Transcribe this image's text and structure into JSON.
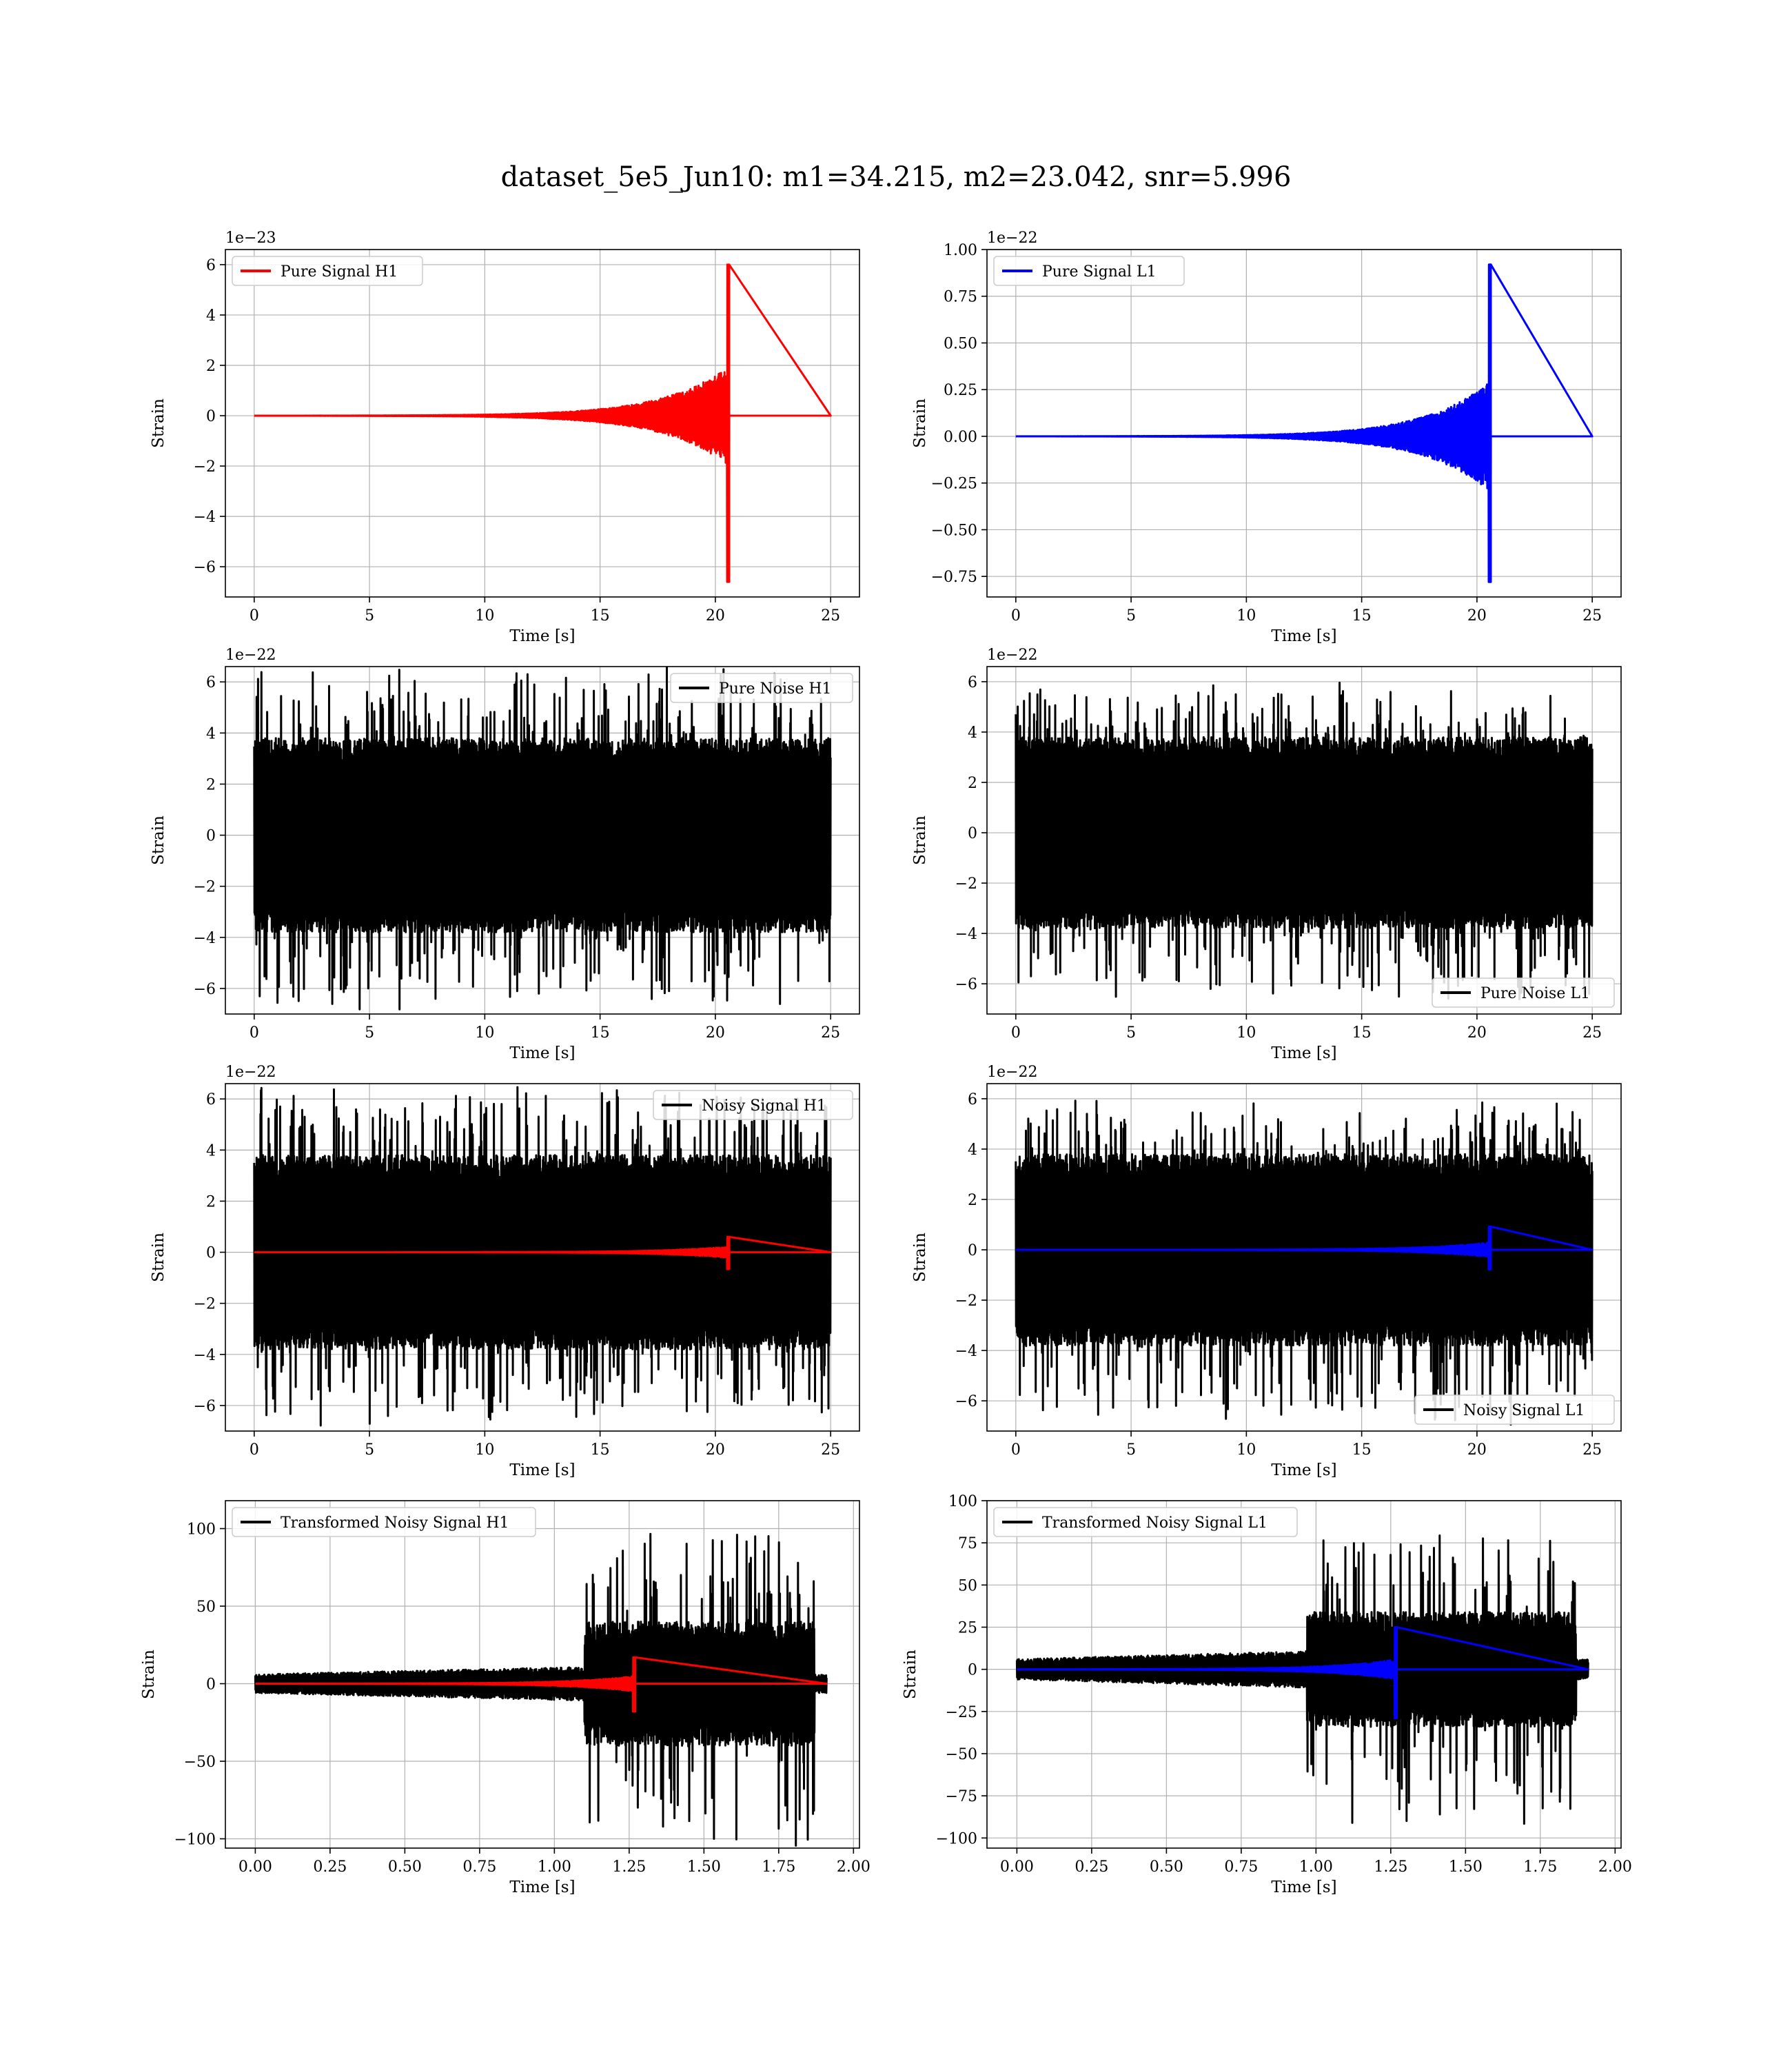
{
  "figure_title": "dataset_5e5_Jun10: m1=34.215, m2=23.042, snr=5.996",
  "colors": {
    "signal_H1": "#ff0000",
    "signal_L1": "#0000ff",
    "noise": "#000000",
    "grid": "#b0b0b0"
  },
  "chart_data": [
    {
      "type": "line",
      "xlabel": "Time [s]",
      "ylabel": "Strain",
      "offset_text": "1e−23",
      "xlim": [
        -1.25,
        26.25
      ],
      "ylim": [
        -7.2,
        6.6
      ],
      "xticks": [
        0,
        5,
        10,
        15,
        20,
        25
      ],
      "xtick_labels": [
        "0",
        "5",
        "10",
        "15",
        "20",
        "25"
      ],
      "yticks": [
        -6,
        -4,
        -2,
        0,
        2,
        4,
        6
      ],
      "ytick_labels": [
        "−6",
        "−4",
        "−2",
        "0",
        "2",
        "4",
        "6"
      ],
      "grid": true,
      "legend_loc": "upper-left",
      "series": [
        {
          "name": "Pure Signal H1",
          "color": "#ff0000",
          "kind": "chirp",
          "t_start": 0,
          "t_end": 25,
          "t_merger": 20.6,
          "amp_plus": 6.0,
          "amp_minus": -6.6,
          "inspiral_amp": 2.0
        }
      ]
    },
    {
      "type": "line",
      "xlabel": "Time [s]",
      "ylabel": "Strain",
      "offset_text": "1e−22",
      "xlim": [
        -1.25,
        26.25
      ],
      "ylim": [
        -0.86,
        1.0
      ],
      "xticks": [
        0,
        5,
        10,
        15,
        20,
        25
      ],
      "xtick_labels": [
        "0",
        "5",
        "10",
        "15",
        "20",
        "25"
      ],
      "yticks": [
        -0.75,
        -0.5,
        -0.25,
        0,
        0.25,
        0.5,
        0.75,
        1.0
      ],
      "ytick_labels": [
        "−0.75",
        "−0.50",
        "−0.25",
        "0.00",
        "0.25",
        "0.50",
        "0.75",
        "1.00"
      ],
      "grid": true,
      "legend_loc": "upper-left",
      "series": [
        {
          "name": "Pure Signal L1",
          "color": "#0000ff",
          "kind": "chirp",
          "t_start": 0,
          "t_end": 25,
          "t_merger": 20.6,
          "amp_plus": 0.92,
          "amp_minus": -0.78,
          "inspiral_amp": 0.3
        }
      ]
    },
    {
      "type": "line",
      "xlabel": "Time [s]",
      "ylabel": "Strain",
      "offset_text": "1e−22",
      "xlim": [
        -1.25,
        26.25
      ],
      "ylim": [
        -7.0,
        6.6
      ],
      "xticks": [
        0,
        5,
        10,
        15,
        20,
        25
      ],
      "xtick_labels": [
        "0",
        "5",
        "10",
        "15",
        "20",
        "25"
      ],
      "yticks": [
        -6,
        -4,
        -2,
        0,
        2,
        4,
        6
      ],
      "ytick_labels": [
        "−6",
        "−4",
        "−2",
        "0",
        "2",
        "4",
        "6"
      ],
      "grid": true,
      "legend_loc": "upper-right",
      "series": [
        {
          "name": "Pure Noise H1",
          "color": "#000000",
          "kind": "noise",
          "t_start": 0,
          "t_end": 25,
          "band": 3.8,
          "peak_max": 6.8,
          "peak_min": -6.9
        }
      ]
    },
    {
      "type": "line",
      "xlabel": "Time [s]",
      "ylabel": "Strain",
      "offset_text": "1e−22",
      "xlim": [
        -1.25,
        26.25
      ],
      "ylim": [
        -7.2,
        6.6
      ],
      "xticks": [
        0,
        5,
        10,
        15,
        20,
        25
      ],
      "xtick_labels": [
        "0",
        "5",
        "10",
        "15",
        "20",
        "25"
      ],
      "yticks": [
        -6,
        -4,
        -2,
        0,
        2,
        4,
        6
      ],
      "ytick_labels": [
        "−6",
        "−4",
        "−2",
        "0",
        "2",
        "4",
        "6"
      ],
      "grid": true,
      "legend_loc": "lower-right",
      "series": [
        {
          "name": "Pure Noise L1",
          "color": "#000000",
          "kind": "noise",
          "t_start": 0,
          "t_end": 25,
          "band": 3.8,
          "peak_max": 6.1,
          "peak_min": -7.0
        }
      ]
    },
    {
      "type": "line",
      "xlabel": "Time [s]",
      "ylabel": "Strain",
      "offset_text": "1e−22",
      "xlim": [
        -1.25,
        26.25
      ],
      "ylim": [
        -7.0,
        6.6
      ],
      "xticks": [
        0,
        5,
        10,
        15,
        20,
        25
      ],
      "xtick_labels": [
        "0",
        "5",
        "10",
        "15",
        "20",
        "25"
      ],
      "yticks": [
        -6,
        -4,
        -2,
        0,
        2,
        4,
        6
      ],
      "ytick_labels": [
        "−6",
        "−4",
        "−2",
        "0",
        "2",
        "4",
        "6"
      ],
      "grid": true,
      "legend_loc": "upper-right",
      "series": [
        {
          "name": "Noisy Signal H1",
          "color": "#000000",
          "kind": "noise",
          "t_start": 0,
          "t_end": 25,
          "band": 3.8,
          "peak_max": 6.8,
          "peak_min": -6.9
        },
        {
          "color": "#ff0000",
          "kind": "chirp",
          "t_start": 0,
          "t_end": 25,
          "t_merger": 20.6,
          "amp_plus": 0.6,
          "amp_minus": -0.66,
          "inspiral_amp": 0.22
        }
      ]
    },
    {
      "type": "line",
      "xlabel": "Time [s]",
      "ylabel": "Strain",
      "offset_text": "1e−22",
      "xlim": [
        -1.25,
        26.25
      ],
      "ylim": [
        -7.2,
        6.6
      ],
      "xticks": [
        0,
        5,
        10,
        15,
        20,
        25
      ],
      "xtick_labels": [
        "0",
        "5",
        "10",
        "15",
        "20",
        "25"
      ],
      "yticks": [
        -6,
        -4,
        -2,
        0,
        2,
        4,
        6
      ],
      "ytick_labels": [
        "−6",
        "−4",
        "−2",
        "0",
        "2",
        "4",
        "6"
      ],
      "grid": true,
      "legend_loc": "lower-right",
      "series": [
        {
          "name": "Noisy Signal L1",
          "color": "#000000",
          "kind": "noise",
          "t_start": 0,
          "t_end": 25,
          "band": 3.8,
          "peak_max": 6.1,
          "peak_min": -7.0
        },
        {
          "color": "#0000ff",
          "kind": "chirp",
          "t_start": 0,
          "t_end": 25,
          "t_merger": 20.6,
          "amp_plus": 0.92,
          "amp_minus": -0.78,
          "inspiral_amp": 0.3
        }
      ]
    },
    {
      "type": "line",
      "xlabel": "Time [s]",
      "ylabel": "Strain",
      "offset_text": "",
      "xlim": [
        -0.1,
        2.02
      ],
      "ylim": [
        -106,
        118
      ],
      "xticks": [
        0,
        0.25,
        0.5,
        0.75,
        1.0,
        1.25,
        1.5,
        1.75,
        2.0
      ],
      "xtick_labels": [
        "0.00",
        "0.25",
        "0.50",
        "0.75",
        "1.00",
        "1.25",
        "1.50",
        "1.75",
        "2.00"
      ],
      "yticks": [
        -100,
        -50,
        0,
        50,
        100
      ],
      "ytick_labels": [
        "−100",
        "−50",
        "0",
        "50",
        "100"
      ],
      "grid": true,
      "legend_loc": "upper-left",
      "series": [
        {
          "name": "Transformed Noisy Signal H1",
          "color": "#000000",
          "kind": "transformed",
          "t_start": 0,
          "t_end": 1.91,
          "t_jump": 1.1,
          "t_cut": 1.87,
          "low_band": 6,
          "high_band": 40,
          "peak_max": 108,
          "peak_min": -105
        },
        {
          "color": "#ff0000",
          "kind": "chirp",
          "t_start": 0,
          "t_end": 1.91,
          "t_merger": 1.27,
          "amp_plus": 17,
          "amp_minus": -18,
          "inspiral_amp": 5
        }
      ]
    },
    {
      "type": "line",
      "xlabel": "Time [s]",
      "ylabel": "Strain",
      "offset_text": "",
      "xlim": [
        -0.1,
        2.02
      ],
      "ylim": [
        -106,
        100
      ],
      "xticks": [
        0,
        0.25,
        0.5,
        0.75,
        1.0,
        1.25,
        1.5,
        1.75,
        2.0
      ],
      "xtick_labels": [
        "0.00",
        "0.25",
        "0.50",
        "0.75",
        "1.00",
        "1.25",
        "1.50",
        "1.75",
        "2.00"
      ],
      "yticks": [
        -100,
        -75,
        -50,
        -25,
        0,
        25,
        50,
        75,
        100
      ],
      "ytick_labels": [
        "−100",
        "−75",
        "−50",
        "−25",
        "0",
        "25",
        "50",
        "75",
        "100"
      ],
      "grid": true,
      "legend_loc": "upper-left",
      "series": [
        {
          "name": "Transformed Noisy Signal L1",
          "color": "#000000",
          "kind": "transformed",
          "t_start": 0,
          "t_end": 1.91,
          "t_jump": 0.97,
          "t_cut": 1.87,
          "low_band": 6,
          "high_band": 34,
          "peak_max": 86,
          "peak_min": -98
        },
        {
          "color": "#0000ff",
          "kind": "chirp",
          "t_start": 0,
          "t_end": 1.91,
          "t_merger": 1.27,
          "amp_plus": 25,
          "amp_minus": -29,
          "inspiral_amp": 6
        }
      ]
    }
  ]
}
